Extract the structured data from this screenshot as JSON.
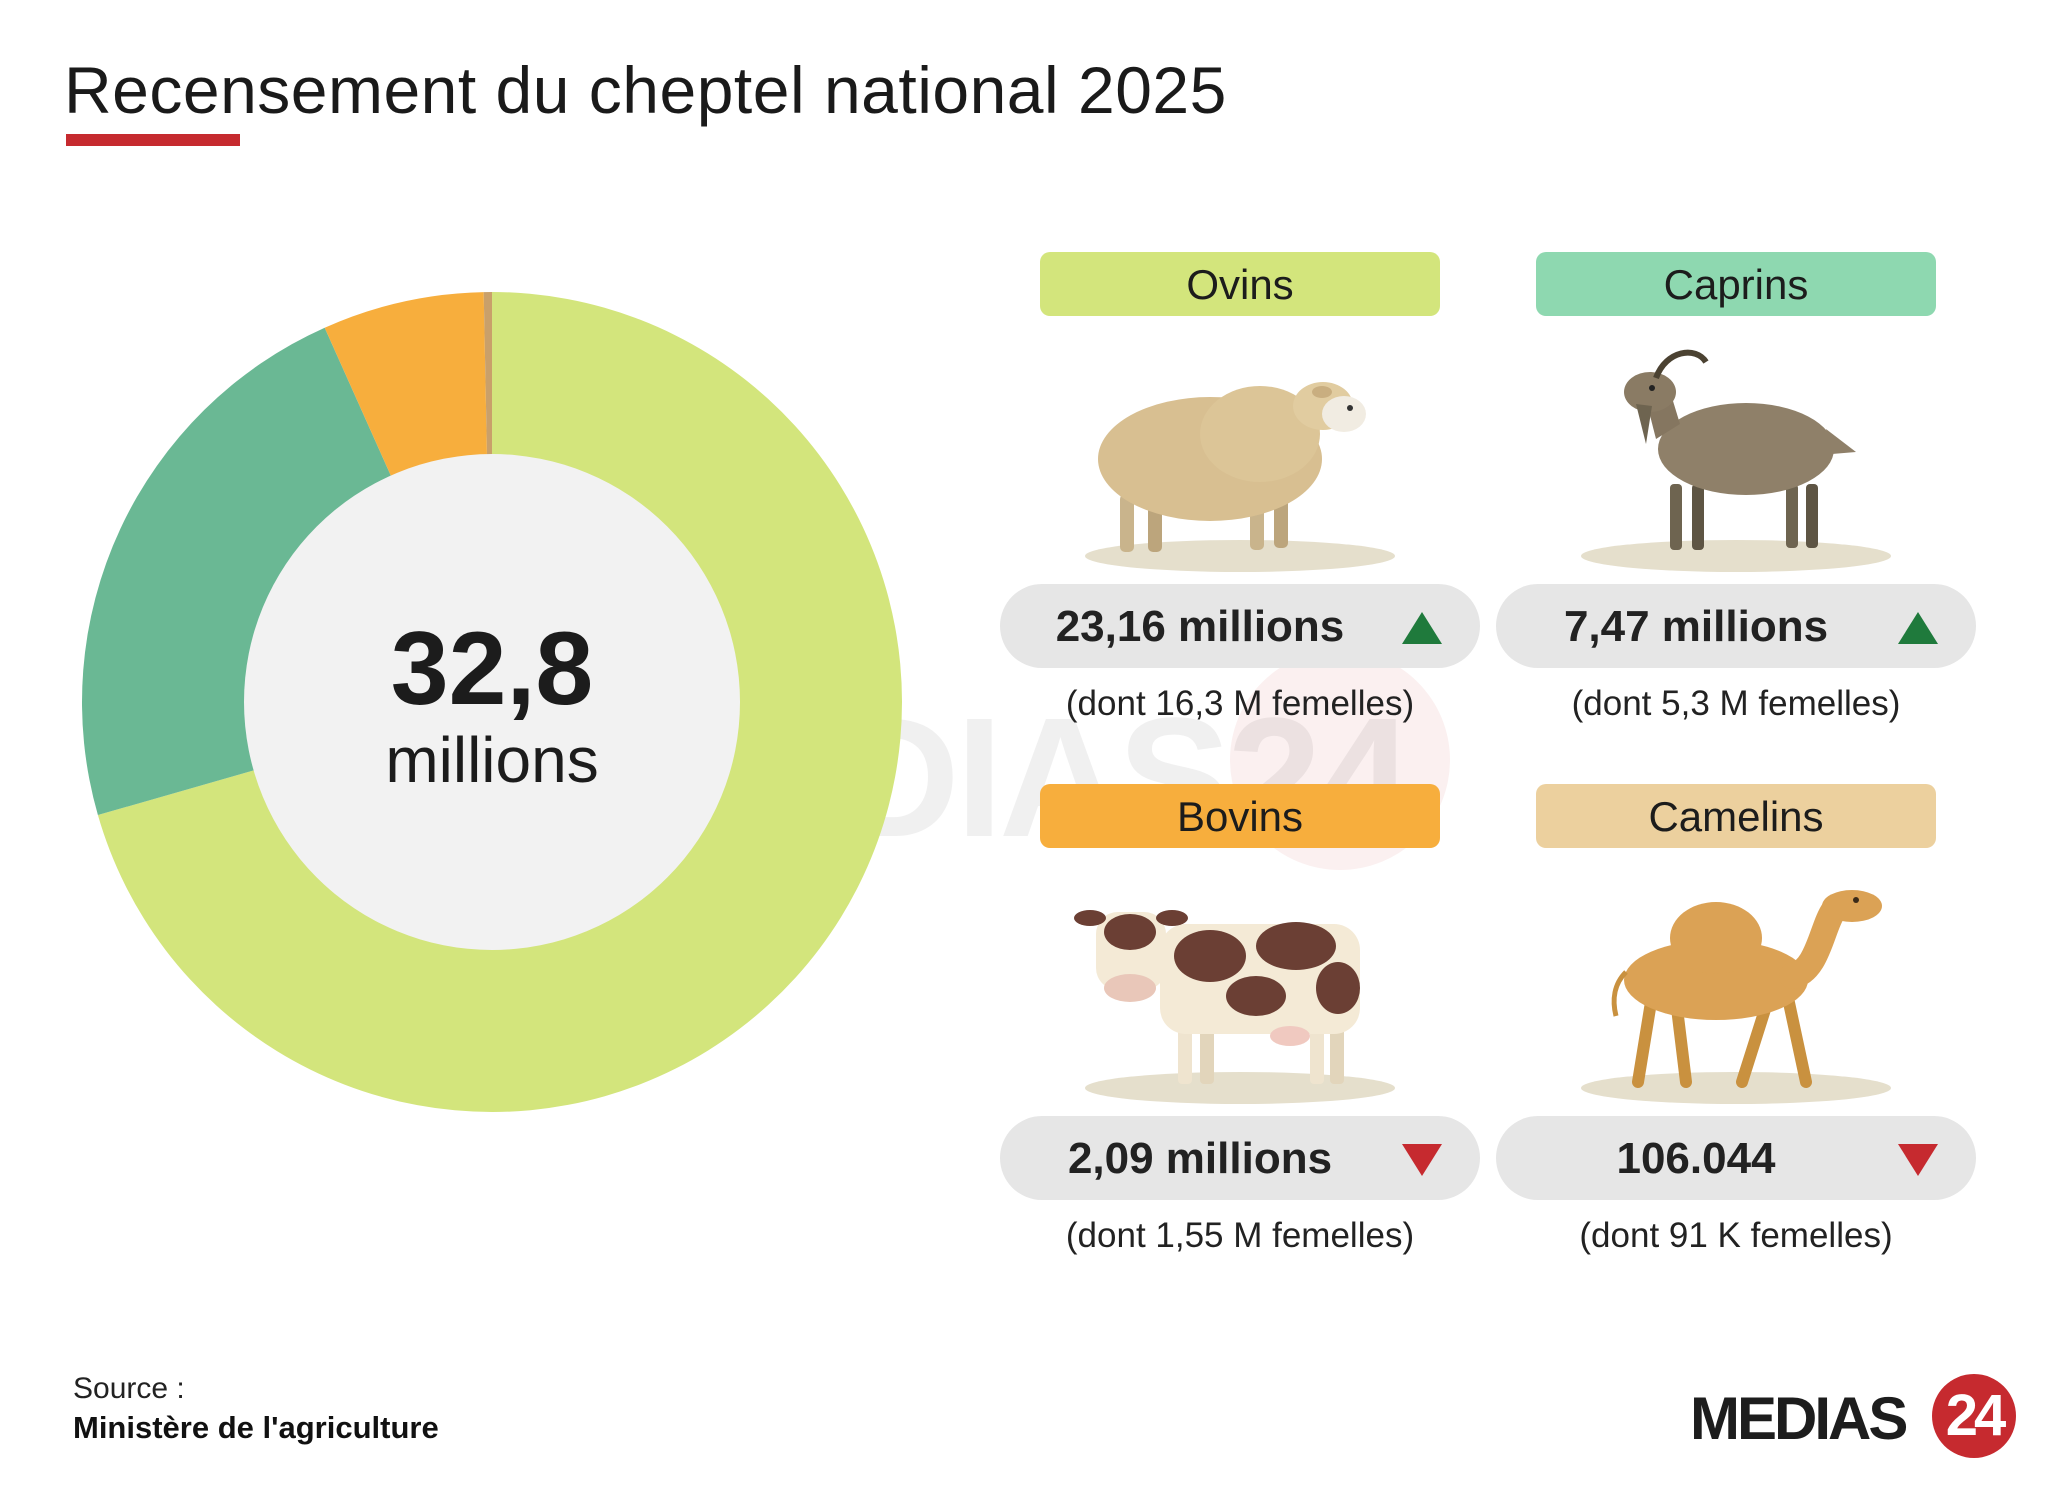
{
  "title": "Recensement du cheptel national 2025",
  "colors": {
    "accent": "#c62a2f",
    "ovins": "#d3e57c",
    "caprins": "#6ab894",
    "caprins_pill": "#8ed8b0",
    "bovins": "#f7ae3d",
    "camelins": "#c9a06a",
    "camelins_pill": "#ecd09e",
    "donut_center": "#f2f2f2",
    "arrow_up": "#1f7a3c",
    "arrow_down": "#c62a2f"
  },
  "chart_data": {
    "type": "pie",
    "center_value": "32,8",
    "center_unit": "millions",
    "categories": [
      "Ovins",
      "Caprins",
      "Bovins",
      "Camelins"
    ],
    "values": [
      23.16,
      7.47,
      2.09,
      0.106044
    ]
  },
  "cards": [
    {
      "label": "Ovins",
      "value": "23,16 millions",
      "trend": "up",
      "sub": "(dont 16,3 M femelles)",
      "icon": "sheep-icon"
    },
    {
      "label": "Caprins",
      "value": "7,47 millions",
      "trend": "up",
      "sub": "(dont 5,3 M femelles)",
      "icon": "goat-icon"
    },
    {
      "label": "Bovins",
      "value": "2,09 millions",
      "trend": "down",
      "sub": "(dont 1,55 M femelles)",
      "icon": "cow-icon"
    },
    {
      "label": "Camelins",
      "value": "106.044",
      "trend": "down",
      "sub": "(dont 91 K femelles)",
      "icon": "camel-icon"
    }
  ],
  "source": {
    "label": "Source :",
    "name": "Ministère de l'agriculture"
  },
  "logo": {
    "text": "MEDIAS",
    "number": "24"
  },
  "watermark": "MEDIAS24"
}
